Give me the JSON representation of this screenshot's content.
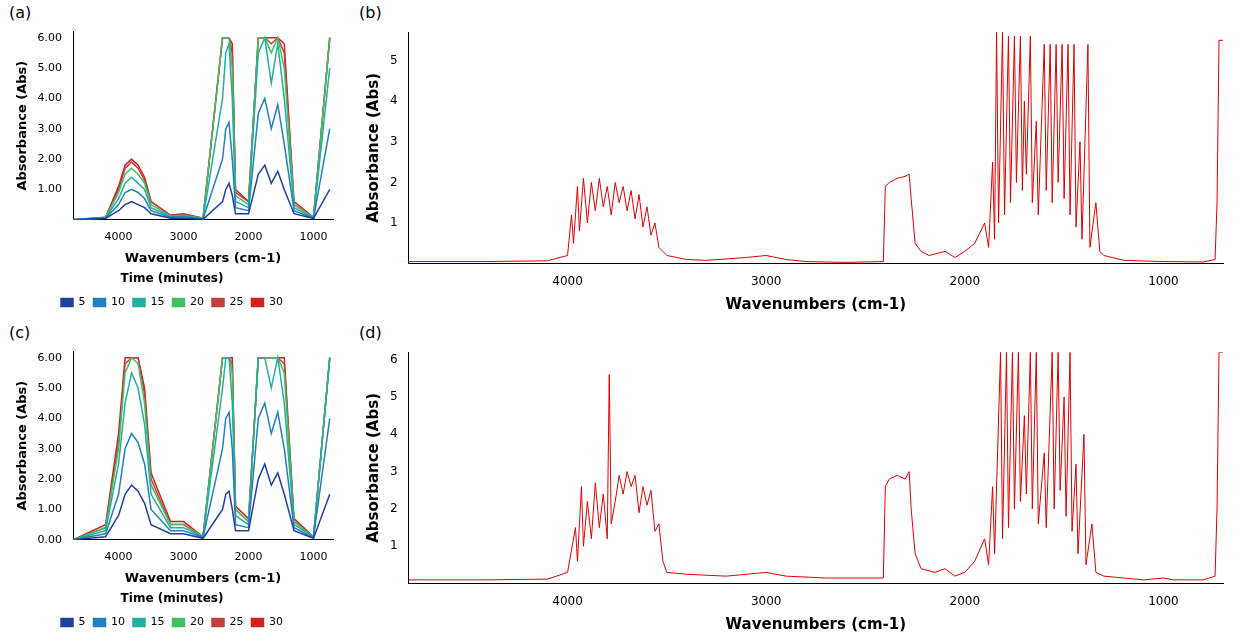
{
  "chart_data": [
    {
      "panel": "(a)",
      "type": "line",
      "xlabel": "Wavenumbers (cm-1)",
      "ylabel": "Absorbance (Abs)",
      "zlabel": "Time (minutes)",
      "x": [
        4700,
        4200,
        4000,
        3900,
        3800,
        3700,
        3600,
        3500,
        3200,
        3000,
        2700,
        2400,
        2350,
        2300,
        2250,
        2200,
        2000,
        1850,
        1750,
        1650,
        1550,
        1450,
        1300,
        1000,
        750
      ],
      "series": [
        {
          "name": "5",
          "color": "#2040a0",
          "values": [
            0,
            0.05,
            0.3,
            0.5,
            0.6,
            0.5,
            0.4,
            0.2,
            0.05,
            0.05,
            0.02,
            0.6,
            1.0,
            1.2,
            0.8,
            0.2,
            0.2,
            1.5,
            1.8,
            1.2,
            1.6,
            1.0,
            0.2,
            0.05,
            1.0
          ]
        },
        {
          "name": "10",
          "color": "#2080c0",
          "values": [
            0,
            0.05,
            0.5,
            0.9,
            1.0,
            0.9,
            0.7,
            0.3,
            0.08,
            0.1,
            0.03,
            2.0,
            3.0,
            3.2,
            2.0,
            0.4,
            0.3,
            3.5,
            4.0,
            3.0,
            3.8,
            2.5,
            0.3,
            0.05,
            3.0
          ]
        },
        {
          "name": "15",
          "color": "#20b0a0",
          "values": [
            0,
            0.06,
            0.7,
            1.2,
            1.4,
            1.2,
            1.0,
            0.4,
            0.1,
            0.12,
            0.04,
            4.0,
            5.5,
            5.8,
            4.0,
            0.6,
            0.4,
            5.5,
            6.0,
            4.5,
            5.8,
            4.0,
            0.4,
            0.06,
            5.0
          ]
        },
        {
          "name": "20",
          "color": "#40c060",
          "values": [
            0,
            0.07,
            0.9,
            1.5,
            1.7,
            1.5,
            1.2,
            0.5,
            0.12,
            0.15,
            0.05,
            6.0,
            6.0,
            6.0,
            5.0,
            0.8,
            0.5,
            6.0,
            6.0,
            5.5,
            6.0,
            5.0,
            0.5,
            0.07,
            6.0
          ]
        },
        {
          "name": "25",
          "color": "#c04040",
          "values": [
            0,
            0.08,
            1.0,
            1.7,
            1.9,
            1.7,
            1.3,
            0.6,
            0.15,
            0.18,
            0.05,
            6.0,
            6.0,
            6.0,
            5.5,
            0.9,
            0.6,
            6.0,
            6.0,
            5.8,
            6.0,
            5.5,
            0.5,
            0.08,
            6.0
          ]
        },
        {
          "name": "30",
          "color": "#d02020",
          "values": [
            0,
            0.08,
            1.1,
            1.8,
            2.0,
            1.8,
            1.4,
            0.6,
            0.15,
            0.2,
            0.05,
            6.0,
            6.0,
            6.0,
            5.8,
            1.0,
            0.6,
            6.0,
            6.0,
            6.0,
            6.0,
            5.8,
            0.6,
            0.08,
            6.0
          ]
        }
      ],
      "xlim": [
        4700,
        700
      ],
      "xticks": [
        4000,
        3000,
        2000,
        1000
      ],
      "ylim": [
        0,
        6.2
      ],
      "yticks": [
        {
          "value": 1,
          "label": "1.00"
        },
        {
          "value": 2,
          "label": "2.00"
        },
        {
          "value": 3,
          "label": "3.00"
        },
        {
          "value": 4,
          "label": "4.00"
        },
        {
          "value": 5,
          "label": "5.00"
        },
        {
          "value": 6,
          "label": "6.00"
        }
      ],
      "grid": false,
      "legend": "bottom"
    },
    {
      "panel": "(b)",
      "type": "line",
      "xlabel": "Wavenumbers (cm-1)",
      "ylabel": "Absorbance (Abs)",
      "color": "#e00000",
      "x": [
        4800,
        4400,
        4100,
        4000,
        3980,
        3970,
        3950,
        3940,
        3920,
        3900,
        3880,
        3860,
        3840,
        3820,
        3800,
        3780,
        3760,
        3740,
        3720,
        3700,
        3680,
        3660,
        3640,
        3620,
        3600,
        3580,
        3560,
        3540,
        3500,
        3400,
        3300,
        3100,
        3000,
        2900,
        2800,
        2600,
        2410,
        2400,
        2380,
        2340,
        2300,
        2280,
        2270,
        2250,
        2220,
        2180,
        2100,
        2050,
        2000,
        1950,
        1900,
        1880,
        1860,
        1850,
        1840,
        1830,
        1810,
        1800,
        1780,
        1770,
        1750,
        1740,
        1720,
        1710,
        1700,
        1690,
        1670,
        1660,
        1640,
        1630,
        1600,
        1590,
        1570,
        1560,
        1540,
        1530,
        1510,
        1500,
        1480,
        1470,
        1450,
        1440,
        1420,
        1410,
        1380,
        1370,
        1340,
        1320,
        1300,
        1200,
        1000,
        800,
        740,
        730,
        720,
        700
      ],
      "values": [
        0.05,
        0.05,
        0.07,
        0.2,
        1.2,
        0.5,
        1.9,
        0.8,
        2.1,
        1.0,
        2.0,
        1.3,
        2.1,
        1.4,
        1.9,
        1.2,
        2.0,
        1.5,
        1.9,
        1.3,
        1.8,
        1.1,
        1.7,
        0.9,
        1.4,
        0.7,
        1.0,
        0.4,
        0.2,
        0.1,
        0.08,
        0.15,
        0.2,
        0.1,
        0.05,
        0.03,
        0.05,
        1.9,
        2.0,
        2.1,
        2.15,
        2.2,
        1.6,
        0.5,
        0.3,
        0.2,
        0.3,
        0.15,
        0.3,
        0.5,
        1.0,
        0.4,
        2.5,
        0.6,
        5.7,
        1.0,
        5.7,
        1.2,
        5.6,
        1.5,
        5.6,
        2.0,
        5.6,
        1.8,
        4.0,
        2.2,
        5.6,
        1.5,
        3.5,
        1.2,
        5.4,
        1.8,
        5.4,
        1.5,
        5.4,
        2.0,
        5.4,
        1.6,
        5.4,
        1.2,
        5.4,
        0.9,
        3.0,
        0.6,
        5.4,
        0.4,
        1.5,
        0.3,
        0.2,
        0.08,
        0.05,
        0.04,
        0.1,
        1.5,
        5.5,
        5.5
      ],
      "xlim": [
        4800,
        700
      ],
      "xticks": [
        4000,
        3000,
        2000,
        1000
      ],
      "ylim": [
        0,
        5.7
      ],
      "yticks": [
        1,
        2,
        3,
        4,
        5
      ],
      "grid": false
    },
    {
      "panel": "(c)",
      "type": "line",
      "xlabel": "Wavenumbers (cm-1)",
      "ylabel": "Absorbance (Abs)",
      "zlabel": "Time (minutes)",
      "x": [
        4700,
        4200,
        4000,
        3900,
        3800,
        3700,
        3600,
        3500,
        3200,
        3000,
        2700,
        2400,
        2350,
        2300,
        2250,
        2200,
        2000,
        1850,
        1750,
        1650,
        1550,
        1450,
        1300,
        1000,
        750
      ],
      "series": [
        {
          "name": "5",
          "color": "#2040a0",
          "values": [
            0,
            0.1,
            0.8,
            1.5,
            1.8,
            1.6,
            1.2,
            0.5,
            0.2,
            0.2,
            0.05,
            1.0,
            1.5,
            1.6,
            1.0,
            0.3,
            0.3,
            2.0,
            2.5,
            1.8,
            2.2,
            1.5,
            0.3,
            0.05,
            1.5
          ]
        },
        {
          "name": "10",
          "color": "#2080c0",
          "values": [
            0,
            0.2,
            1.5,
            3.0,
            3.5,
            3.2,
            2.5,
            1.0,
            0.3,
            0.3,
            0.08,
            3.0,
            4.0,
            4.2,
            3.0,
            0.5,
            0.4,
            4.0,
            4.5,
            3.5,
            4.2,
            3.0,
            0.4,
            0.08,
            4.0
          ]
        },
        {
          "name": "15",
          "color": "#20b0a0",
          "values": [
            0,
            0.3,
            2.5,
            4.5,
            5.5,
            5.0,
            3.8,
            1.5,
            0.4,
            0.4,
            0.1,
            5.0,
            6.0,
            6.0,
            4.5,
            0.8,
            0.5,
            6.0,
            6.0,
            5.0,
            6.0,
            4.5,
            0.5,
            0.1,
            6.0
          ]
        },
        {
          "name": "20",
          "color": "#40c060",
          "values": [
            0,
            0.4,
            3.0,
            5.5,
            6.0,
            5.8,
            4.5,
            1.8,
            0.5,
            0.5,
            0.1,
            6.0,
            6.0,
            6.0,
            5.5,
            1.0,
            0.6,
            6.0,
            6.0,
            6.0,
            6.0,
            5.5,
            0.6,
            0.1,
            6.0
          ]
        },
        {
          "name": "25",
          "color": "#c04040",
          "values": [
            0,
            0.4,
            3.2,
            5.8,
            6.0,
            6.0,
            4.8,
            2.0,
            0.5,
            0.5,
            0.1,
            6.0,
            6.0,
            6.0,
            5.8,
            1.0,
            0.6,
            6.0,
            6.0,
            6.0,
            6.0,
            5.8,
            0.6,
            0.1,
            6.0
          ]
        },
        {
          "name": "30",
          "color": "#d02020",
          "values": [
            0,
            0.5,
            3.5,
            6.0,
            6.0,
            6.0,
            5.0,
            2.2,
            0.6,
            0.6,
            0.1,
            6.0,
            6.0,
            6.0,
            6.0,
            1.1,
            0.7,
            6.0,
            6.0,
            6.0,
            6.0,
            6.0,
            0.7,
            0.1,
            6.0
          ]
        }
      ],
      "xlim": [
        4700,
        700
      ],
      "xticks": [
        4000,
        3000,
        2000,
        1000
      ],
      "ylim": [
        0,
        6.2
      ],
      "yticks": [
        {
          "value": 0,
          "label": "0.00"
        },
        {
          "value": 1,
          "label": "1.00"
        },
        {
          "value": 2,
          "label": "2.00"
        },
        {
          "value": 3,
          "label": "3.00"
        },
        {
          "value": 4,
          "label": "4.00"
        },
        {
          "value": 5,
          "label": "5.00"
        },
        {
          "value": 6,
          "label": "6.00"
        }
      ],
      "grid": false,
      "legend": "bottom"
    },
    {
      "panel": "(d)",
      "type": "line",
      "xlabel": "Wavenumbers (cm-1)",
      "ylabel": "Absorbance (Abs)",
      "color": "#e00000",
      "x": [
        4800,
        4400,
        4100,
        4000,
        3960,
        3950,
        3930,
        3920,
        3900,
        3880,
        3860,
        3840,
        3820,
        3800,
        3790,
        3780,
        3760,
        3740,
        3720,
        3700,
        3680,
        3660,
        3640,
        3620,
        3600,
        3580,
        3560,
        3540,
        3520,
        3500,
        3400,
        3200,
        3000,
        2900,
        2700,
        2410,
        2400,
        2380,
        2340,
        2300,
        2280,
        2270,
        2250,
        2220,
        2150,
        2100,
        2050,
        2000,
        1950,
        1900,
        1880,
        1860,
        1850,
        1820,
        1810,
        1790,
        1780,
        1760,
        1750,
        1730,
        1720,
        1700,
        1690,
        1670,
        1660,
        1640,
        1630,
        1600,
        1590,
        1560,
        1550,
        1530,
        1520,
        1500,
        1490,
        1470,
        1460,
        1440,
        1430,
        1400,
        1390,
        1360,
        1340,
        1300,
        1100,
        1000,
        950,
        800,
        740,
        730,
        720,
        700
      ],
      "values": [
        0.1,
        0.1,
        0.12,
        0.3,
        1.5,
        0.6,
        2.6,
        1.0,
        2.2,
        1.2,
        2.7,
        1.5,
        2.4,
        1.2,
        5.6,
        1.6,
        2.2,
        2.9,
        2.4,
        3.0,
        2.6,
        2.9,
        1.9,
        2.6,
        2.1,
        2.5,
        1.4,
        1.6,
        0.6,
        0.3,
        0.25,
        0.2,
        0.3,
        0.2,
        0.15,
        0.15,
        2.6,
        2.8,
        2.9,
        2.8,
        3.0,
        2.0,
        0.8,
        0.4,
        0.3,
        0.4,
        0.2,
        0.3,
        0.6,
        1.2,
        0.5,
        2.6,
        0.8,
        6.2,
        1.2,
        6.2,
        1.5,
        6.2,
        2.0,
        6.2,
        2.2,
        4.5,
        2.4,
        6.2,
        2.0,
        6.2,
        1.6,
        3.5,
        1.5,
        6.2,
        2.0,
        6.2,
        2.5,
        5.0,
        1.8,
        6.2,
        1.4,
        3.2,
        0.8,
        4.0,
        0.5,
        1.6,
        0.3,
        0.2,
        0.1,
        0.15,
        0.1,
        0.1,
        0.2,
        2.0,
        6.2,
        6.2
      ],
      "xlim": [
        4800,
        700
      ],
      "xticks": [
        4000,
        3000,
        2000,
        1000
      ],
      "ylim": [
        0,
        6.2
      ],
      "yticks": [
        1,
        2,
        3,
        4,
        5,
        6
      ],
      "grid": false
    }
  ]
}
